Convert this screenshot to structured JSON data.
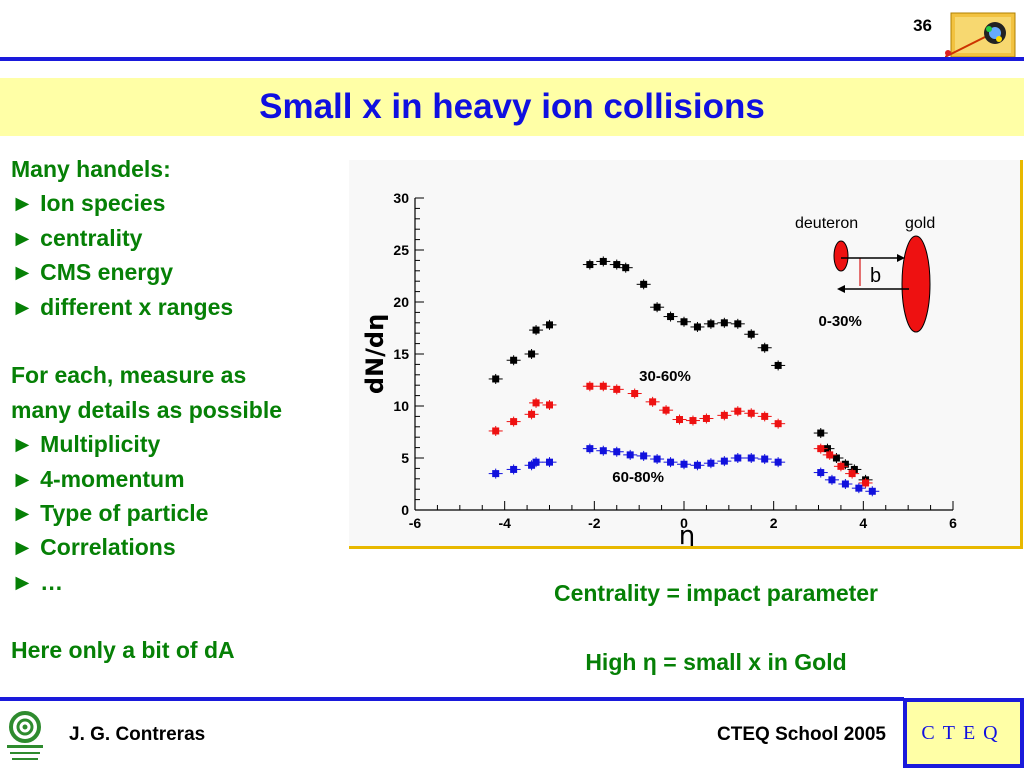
{
  "header": {
    "page_number": "36",
    "title": "Small x in heavy ion collisions"
  },
  "left_text": {
    "lines": [
      "Many handels:",
      "► Ion species",
      "► centrality",
      "► CMS energy",
      "► different x ranges",
      "",
      "For each, measure as",
      "many details as possible",
      "► Multiplicity",
      "► 4-momentum",
      "► Type of particle",
      "► Correlations",
      "►  …",
      "",
      "Here only a bit of dA"
    ]
  },
  "captions": {
    "line1": "Centrality = impact parameter",
    "line2": "High η = small x in Gold"
  },
  "diagram": {
    "left_label": "deuteron",
    "right_label": "gold",
    "impact_label": "b",
    "deuteron_color": "#ee1111",
    "gold_color": "#ee1111"
  },
  "chart_data": {
    "type": "scatter",
    "xlabel": "η",
    "ylabel": "dN/dη",
    "xlim": [
      -6,
      6
    ],
    "ylim": [
      0,
      30
    ],
    "xticks": [
      "-6",
      "-4",
      "-2",
      "0",
      "2",
      "4",
      "6"
    ],
    "yticks": [
      "0",
      "5",
      "10",
      "15",
      "20",
      "25",
      "30"
    ],
    "grid": false,
    "series": [
      {
        "name": "0-30%",
        "color": "#000000",
        "points": [
          [
            -4.2,
            12.6
          ],
          [
            -3.8,
            14.4
          ],
          [
            -3.4,
            15.0
          ],
          [
            -3.3,
            17.3
          ],
          [
            -3.0,
            17.8
          ],
          [
            -2.1,
            23.6
          ],
          [
            -1.8,
            23.9
          ],
          [
            -1.5,
            23.6
          ],
          [
            -1.3,
            23.3
          ],
          [
            -0.9,
            21.7
          ],
          [
            -0.6,
            19.5
          ],
          [
            -0.3,
            18.6
          ],
          [
            0.0,
            18.1
          ],
          [
            0.3,
            17.6
          ],
          [
            0.6,
            17.9
          ],
          [
            0.9,
            18.0
          ],
          [
            1.2,
            17.9
          ],
          [
            1.5,
            16.9
          ],
          [
            1.8,
            15.6
          ],
          [
            2.1,
            13.9
          ],
          [
            3.05,
            7.4
          ],
          [
            3.2,
            5.9
          ],
          [
            3.4,
            5.0
          ],
          [
            3.6,
            4.4
          ],
          [
            3.8,
            3.9
          ],
          [
            4.05,
            2.9
          ]
        ]
      },
      {
        "name": "30-60%",
        "color": "#ee1111",
        "points": [
          [
            -4.2,
            7.6
          ],
          [
            -3.8,
            8.5
          ],
          [
            -3.4,
            9.2
          ],
          [
            -3.3,
            10.3
          ],
          [
            -3.0,
            10.1
          ],
          [
            -2.1,
            11.9
          ],
          [
            -1.8,
            11.9
          ],
          [
            -1.5,
            11.6
          ],
          [
            -1.1,
            11.2
          ],
          [
            -0.7,
            10.4
          ],
          [
            -0.4,
            9.6
          ],
          [
            -0.1,
            8.7
          ],
          [
            0.2,
            8.6
          ],
          [
            0.5,
            8.8
          ],
          [
            0.9,
            9.1
          ],
          [
            1.2,
            9.5
          ],
          [
            1.5,
            9.3
          ],
          [
            1.8,
            9.0
          ],
          [
            2.1,
            8.3
          ],
          [
            3.05,
            5.9
          ],
          [
            3.25,
            5.3
          ],
          [
            3.5,
            4.2
          ],
          [
            3.75,
            3.5
          ],
          [
            4.05,
            2.6
          ]
        ]
      },
      {
        "name": "60-80%",
        "color": "#1111dd",
        "points": [
          [
            -4.2,
            3.5
          ],
          [
            -3.8,
            3.9
          ],
          [
            -3.4,
            4.3
          ],
          [
            -3.3,
            4.6
          ],
          [
            -3.0,
            4.6
          ],
          [
            -2.1,
            5.9
          ],
          [
            -1.8,
            5.7
          ],
          [
            -1.5,
            5.6
          ],
          [
            -1.2,
            5.3
          ],
          [
            -0.9,
            5.2
          ],
          [
            -0.6,
            4.9
          ],
          [
            -0.3,
            4.6
          ],
          [
            0.0,
            4.4
          ],
          [
            0.3,
            4.3
          ],
          [
            0.6,
            4.5
          ],
          [
            0.9,
            4.7
          ],
          [
            1.2,
            5.0
          ],
          [
            1.5,
            5.0
          ],
          [
            1.8,
            4.9
          ],
          [
            2.1,
            4.6
          ],
          [
            3.05,
            3.6
          ],
          [
            3.3,
            2.9
          ],
          [
            3.6,
            2.5
          ],
          [
            3.9,
            2.1
          ],
          [
            4.2,
            1.8
          ]
        ]
      }
    ],
    "annotations": [
      {
        "text": "0-30%",
        "x": 3.0,
        "y": 17.7
      },
      {
        "text": "30-60%",
        "x": -1.0,
        "y": 12.4
      },
      {
        "text": "60-80%",
        "x": -1.6,
        "y": 2.7
      }
    ]
  }
}
